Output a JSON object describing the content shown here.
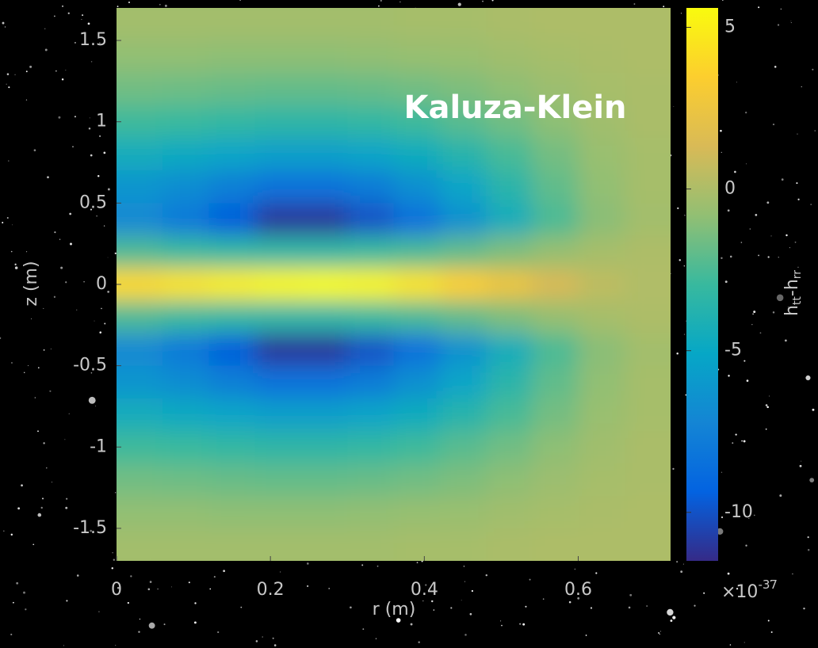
{
  "chart_data": {
    "type": "heatmap",
    "annotation": "Kaluza-Klein",
    "xlabel": "r (m)",
    "ylabel": "z (m)",
    "xlim": [
      0,
      0.72
    ],
    "ylim": [
      -1.7,
      1.7
    ],
    "xticks": [
      0,
      0.2,
      0.4,
      0.6
    ],
    "yticks": [
      -1.5,
      -1,
      -0.5,
      0,
      0.5,
      1,
      1.5
    ],
    "x": [
      0.03,
      0.09,
      0.15,
      0.21,
      0.27,
      0.33,
      0.39,
      0.45,
      0.51,
      0.57,
      0.63,
      0.69
    ],
    "y": [
      1.6,
      1.4,
      1.2,
      1.0,
      0.8,
      0.6,
      0.4,
      0.2,
      0,
      -0.2,
      -0.4,
      -0.6,
      -0.8,
      -1.0,
      -1.2,
      -1.4,
      -1.6
    ],
    "values": [
      [
        -0.3,
        -0.3,
        -0.3,
        -0.3,
        -0.3,
        -0.3,
        -0.2,
        -0.2,
        -0.1,
        0,
        0,
        0
      ],
      [
        -0.8,
        -0.8,
        -0.9,
        -0.9,
        -0.9,
        -0.8,
        -0.7,
        -0.6,
        -0.4,
        -0.2,
        -0.1,
        0
      ],
      [
        -1.6,
        -1.7,
        -1.8,
        -1.9,
        -1.9,
        -1.8,
        -1.6,
        -1.3,
        -0.9,
        -0.5,
        -0.2,
        -0.1
      ],
      [
        -2.8,
        -3,
        -3.2,
        -3.4,
        -3.4,
        -3.2,
        -2.8,
        -2.2,
        -1.6,
        -0.9,
        -0.4,
        -0.1
      ],
      [
        -4.5,
        -4.8,
        -5.2,
        -5.6,
        -5.6,
        -5.3,
        -4.6,
        -3.7,
        -2.6,
        -1.5,
        -0.6,
        -0.2
      ],
      [
        -6.3,
        -6.8,
        -7.6,
        -8.4,
        -8.4,
        -7.8,
        -6.6,
        -5.2,
        -3.6,
        -2,
        -0.8,
        -0.2
      ],
      [
        -7,
        -8,
        -9.5,
        -11,
        -11,
        -10,
        -8.5,
        -6.5,
        -4.5,
        -2.5,
        -1,
        -0.3
      ],
      [
        -2.5,
        -3,
        -3.2,
        -3.3,
        -3.3,
        -3,
        -2.6,
        -2,
        -1.3,
        -0.7,
        -0.2,
        0
      ],
      [
        4,
        4.5,
        5,
        5.4,
        5.6,
        5.3,
        4.5,
        3.5,
        2.5,
        1.3,
        0.5,
        0.1
      ],
      [
        -2.5,
        -3,
        -3.2,
        -3.3,
        -3.3,
        -3,
        -2.6,
        -2,
        -1.3,
        -0.7,
        -0.2,
        0
      ],
      [
        -7,
        -8,
        -9.5,
        -11,
        -11,
        -10,
        -8.5,
        -6.5,
        -4.5,
        -2.5,
        -1,
        -0.3
      ],
      [
        -6.3,
        -6.8,
        -7.6,
        -8.4,
        -8.4,
        -7.8,
        -6.6,
        -5.2,
        -3.6,
        -2,
        -0.8,
        -0.2
      ],
      [
        -4.5,
        -4.8,
        -5.2,
        -5.6,
        -5.6,
        -5.3,
        -4.6,
        -3.7,
        -2.6,
        -1.5,
        -0.6,
        -0.2
      ],
      [
        -2.8,
        -3,
        -3.2,
        -3.4,
        -3.4,
        -3.2,
        -2.8,
        -2.2,
        -1.6,
        -0.9,
        -0.4,
        -0.1
      ],
      [
        -1.6,
        -1.7,
        -1.8,
        -1.9,
        -1.9,
        -1.8,
        -1.6,
        -1.3,
        -0.9,
        -0.5,
        -0.2,
        -0.1
      ],
      [
        -0.8,
        -0.8,
        -0.9,
        -0.9,
        -0.9,
        -0.8,
        -0.7,
        -0.6,
        -0.4,
        -0.2,
        -0.1,
        0
      ],
      [
        -0.3,
        -0.3,
        -0.3,
        -0.3,
        -0.3,
        -0.3,
        -0.2,
        -0.2,
        -0.1,
        0,
        0,
        0
      ]
    ],
    "colormap": [
      "#352a87",
      "#0363e1",
      "#1485d4",
      "#06a7c6",
      "#38b99e",
      "#92bf73",
      "#d9ba56",
      "#fcce2e",
      "#f9fb0e"
    ],
    "clim": [
      -11.5,
      5.6
    ],
    "cticks": [
      -10,
      -5,
      0,
      5
    ],
    "colorbar_label": [
      "h",
      "tt",
      "-h",
      "rr"
    ],
    "colorbar_scale": {
      "base": "×10",
      "exponent": "-37"
    }
  }
}
